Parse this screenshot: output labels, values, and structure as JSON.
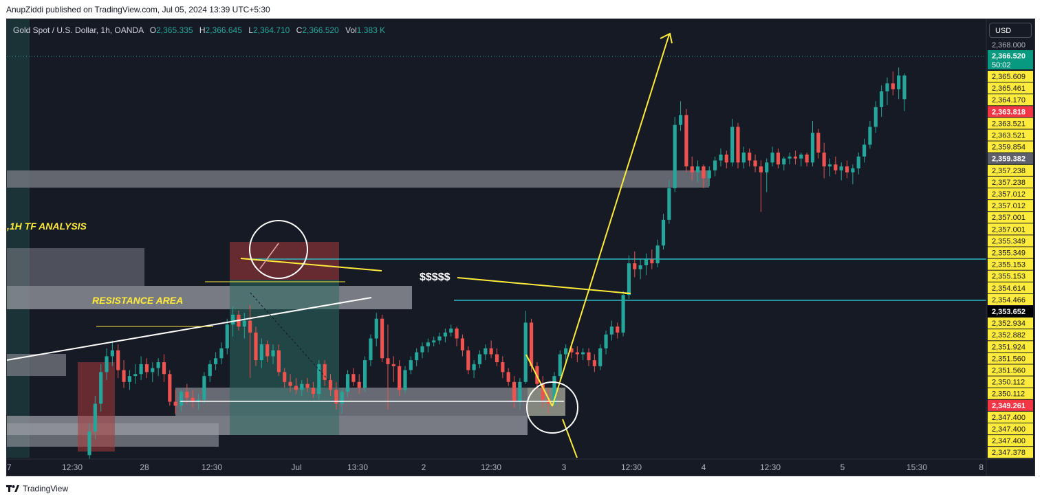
{
  "publisher_line": "AnupZiddi published on TradingView.com, Jul 05, 2024 13:39 UTC+5:30",
  "symbol": {
    "name": "Gold Spot / U.S. Dollar, 1h, OANDA",
    "o_label": "O",
    "o_value": "2,365.335",
    "h_label": "H",
    "h_value": "2,366.645",
    "l_label": "L",
    "l_value": "2,364.710",
    "c_label": "C",
    "c_value": "2,366.520",
    "vol_label": "Vol",
    "vol_value": "1.383 K"
  },
  "currency_button": "USD",
  "footer_brand": "TradingView",
  "colors": {
    "background": "#161a25",
    "bull": "#26a69a",
    "bear": "#ef5350",
    "yellow": "#ffeb3b",
    "cyan": "#2fb7c6",
    "zone_gray": "#7d8088",
    "label_yellow": "#ffeb3b",
    "label_red": "#f23645",
    "label_teal": "#089981"
  },
  "annotations": {
    "analysis_title": ",1H TF ANALYSIS",
    "resistance_label": "RESISTANCE AREA",
    "dollar_label": "$$$$$"
  },
  "chart_data": {
    "type": "candlestick",
    "title": "",
    "xlabel": "",
    "ylabel": "",
    "ylim": [
      2347.1,
      2368.3
    ],
    "last_price": "2,366.520",
    "countdown": "50:02",
    "x_ticks": [
      "7",
      "12:30",
      "28",
      "12:30",
      "Jul",
      "13:30",
      "2",
      "12:30",
      "3",
      "12:30",
      "4",
      "12:30",
      "5",
      "15:30",
      "8"
    ],
    "y_top_tick": "2,368.000",
    "price_labels": [
      {
        "text": "2,365.609",
        "kind": "yellow"
      },
      {
        "text": "2,365.461",
        "kind": "yellow"
      },
      {
        "text": "2,364.170",
        "kind": "yellow"
      },
      {
        "text": "2,363.818",
        "kind": "red"
      },
      {
        "text": "2,363.521",
        "kind": "yellow"
      },
      {
        "text": "2,363.521",
        "kind": "yellow"
      },
      {
        "text": "2,359.854",
        "kind": "yellow"
      },
      {
        "text": "2,359.382",
        "kind": "gray"
      },
      {
        "text": "2,357.238",
        "kind": "yellow"
      },
      {
        "text": "2,357.238",
        "kind": "yellow"
      },
      {
        "text": "2,357.012",
        "kind": "yellow"
      },
      {
        "text": "2,357.012",
        "kind": "yellow"
      },
      {
        "text": "2,357.001",
        "kind": "yellow"
      },
      {
        "text": "2,357.001",
        "kind": "yellow"
      },
      {
        "text": "2,355.349",
        "kind": "yellow"
      },
      {
        "text": "2,355.349",
        "kind": "yellow"
      },
      {
        "text": "2,355.153",
        "kind": "yellow"
      },
      {
        "text": "2,355.153",
        "kind": "yellow"
      },
      {
        "text": "2,354.614",
        "kind": "yellow"
      },
      {
        "text": "2,354.466",
        "kind": "yellow"
      },
      {
        "text": "2,353.652",
        "kind": "black"
      },
      {
        "text": "2,352.934",
        "kind": "yellow"
      },
      {
        "text": "2,352.882",
        "kind": "yellow"
      },
      {
        "text": "2,351.924",
        "kind": "yellow"
      },
      {
        "text": "2,351.560",
        "kind": "yellow"
      },
      {
        "text": "2,351.560",
        "kind": "yellow"
      },
      {
        "text": "2,350.112",
        "kind": "yellow"
      },
      {
        "text": "2,350.112",
        "kind": "yellow"
      },
      {
        "text": "2,349.261",
        "kind": "red"
      },
      {
        "text": "2,347.400",
        "kind": "yellow"
      },
      {
        "text": "2,347.400",
        "kind": "yellow"
      },
      {
        "text": "2,347.400",
        "kind": "yellow"
      },
      {
        "text": "2,347.378",
        "kind": "yellow"
      }
    ],
    "candles": [
      {
        "o": 2347.3,
        "h": 2348.9,
        "l": 2347.1,
        "c": 2348.5
      },
      {
        "o": 2348.5,
        "h": 2350.3,
        "l": 2348.1,
        "c": 2349.9
      },
      {
        "o": 2349.9,
        "h": 2351.9,
        "l": 2349.5,
        "c": 2351.5
      },
      {
        "o": 2351.5,
        "h": 2352.7,
        "l": 2351.1,
        "c": 2352.3
      },
      {
        "o": 2352.3,
        "h": 2353.1,
        "l": 2351.8,
        "c": 2352.6
      },
      {
        "o": 2352.6,
        "h": 2352.9,
        "l": 2351.2,
        "c": 2351.6
      },
      {
        "o": 2351.6,
        "h": 2352.1,
        "l": 2350.7,
        "c": 2351.0
      },
      {
        "o": 2351.0,
        "h": 2351.6,
        "l": 2350.6,
        "c": 2351.3
      },
      {
        "o": 2351.3,
        "h": 2351.9,
        "l": 2350.9,
        "c": 2351.4
      },
      {
        "o": 2351.4,
        "h": 2352.3,
        "l": 2351.1,
        "c": 2351.9
      },
      {
        "o": 2351.9,
        "h": 2352.2,
        "l": 2351.2,
        "c": 2351.5
      },
      {
        "o": 2351.5,
        "h": 2352.0,
        "l": 2351.0,
        "c": 2351.7
      },
      {
        "o": 2351.7,
        "h": 2352.2,
        "l": 2351.3,
        "c": 2352.0
      },
      {
        "o": 2352.0,
        "h": 2352.4,
        "l": 2351.0,
        "c": 2351.4
      },
      {
        "o": 2351.4,
        "h": 2351.6,
        "l": 2349.8,
        "c": 2350.0
      },
      {
        "o": 2350.0,
        "h": 2350.6,
        "l": 2349.4,
        "c": 2349.8
      },
      {
        "o": 2349.8,
        "h": 2350.6,
        "l": 2349.5,
        "c": 2350.5
      },
      {
        "o": 2350.5,
        "h": 2350.9,
        "l": 2349.9,
        "c": 2350.2
      },
      {
        "o": 2350.2,
        "h": 2350.6,
        "l": 2349.7,
        "c": 2350.0
      },
      {
        "o": 2350.0,
        "h": 2350.4,
        "l": 2349.6,
        "c": 2350.1
      },
      {
        "o": 2350.1,
        "h": 2351.5,
        "l": 2349.9,
        "c": 2351.3
      },
      {
        "o": 2351.3,
        "h": 2352.1,
        "l": 2351.0,
        "c": 2351.9
      },
      {
        "o": 2351.9,
        "h": 2352.5,
        "l": 2351.6,
        "c": 2352.2
      },
      {
        "o": 2352.2,
        "h": 2353.0,
        "l": 2351.9,
        "c": 2352.7
      },
      {
        "o": 2352.7,
        "h": 2354.2,
        "l": 2352.4,
        "c": 2353.9
      },
      {
        "o": 2353.9,
        "h": 2354.8,
        "l": 2353.3,
        "c": 2354.4
      },
      {
        "o": 2354.4,
        "h": 2354.6,
        "l": 2353.6,
        "c": 2353.8
      },
      {
        "o": 2353.8,
        "h": 2354.5,
        "l": 2353.2,
        "c": 2354.1
      },
      {
        "o": 2354.1,
        "h": 2354.9,
        "l": 2351.2,
        "c": 2353.5
      },
      {
        "o": 2353.5,
        "h": 2353.8,
        "l": 2351.8,
        "c": 2352.1
      },
      {
        "o": 2352.1,
        "h": 2353.2,
        "l": 2351.7,
        "c": 2352.9
      },
      {
        "o": 2352.9,
        "h": 2353.1,
        "l": 2352.0,
        "c": 2352.3
      },
      {
        "o": 2352.3,
        "h": 2352.9,
        "l": 2351.9,
        "c": 2352.6
      },
      {
        "o": 2352.6,
        "h": 2352.9,
        "l": 2351.3,
        "c": 2351.5
      },
      {
        "o": 2351.5,
        "h": 2351.7,
        "l": 2350.7,
        "c": 2351.0
      },
      {
        "o": 2351.0,
        "h": 2351.4,
        "l": 2350.5,
        "c": 2350.8
      },
      {
        "o": 2350.8,
        "h": 2351.2,
        "l": 2350.4,
        "c": 2350.6
      },
      {
        "o": 2350.6,
        "h": 2351.1,
        "l": 2350.3,
        "c": 2350.9
      },
      {
        "o": 2350.9,
        "h": 2351.2,
        "l": 2350.5,
        "c": 2350.7
      },
      {
        "o": 2350.7,
        "h": 2351.0,
        "l": 2350.2,
        "c": 2350.4
      },
      {
        "o": 2350.4,
        "h": 2352.1,
        "l": 2350.1,
        "c": 2351.9
      },
      {
        "o": 2351.9,
        "h": 2352.1,
        "l": 2350.8,
        "c": 2351.1
      },
      {
        "o": 2351.1,
        "h": 2351.4,
        "l": 2350.3,
        "c": 2350.6
      },
      {
        "o": 2350.6,
        "h": 2351.0,
        "l": 2349.6,
        "c": 2349.9
      },
      {
        "o": 2349.9,
        "h": 2350.7,
        "l": 2349.4,
        "c": 2350.5
      },
      {
        "o": 2350.5,
        "h": 2351.6,
        "l": 2350.2,
        "c": 2351.4
      },
      {
        "o": 2351.4,
        "h": 2351.7,
        "l": 2350.8,
        "c": 2351.0
      },
      {
        "o": 2351.0,
        "h": 2351.4,
        "l": 2350.4,
        "c": 2350.7
      },
      {
        "o": 2350.7,
        "h": 2352.3,
        "l": 2350.5,
        "c": 2352.1
      },
      {
        "o": 2352.1,
        "h": 2353.4,
        "l": 2351.8,
        "c": 2353.2
      },
      {
        "o": 2353.2,
        "h": 2354.5,
        "l": 2352.8,
        "c": 2354.2
      },
      {
        "o": 2354.2,
        "h": 2354.4,
        "l": 2352.0,
        "c": 2352.2
      },
      {
        "o": 2352.2,
        "h": 2353.9,
        "l": 2349.6,
        "c": 2351.9
      },
      {
        "o": 2351.9,
        "h": 2352.3,
        "l": 2351.0,
        "c": 2351.8
      },
      {
        "o": 2351.8,
        "h": 2352.1,
        "l": 2350.3,
        "c": 2350.6
      },
      {
        "o": 2350.6,
        "h": 2351.8,
        "l": 2350.4,
        "c": 2351.6
      },
      {
        "o": 2351.6,
        "h": 2352.3,
        "l": 2351.4,
        "c": 2352.1
      },
      {
        "o": 2352.1,
        "h": 2352.7,
        "l": 2351.8,
        "c": 2352.5
      },
      {
        "o": 2352.5,
        "h": 2353.0,
        "l": 2352.2,
        "c": 2352.8
      },
      {
        "o": 2352.8,
        "h": 2353.2,
        "l": 2352.5,
        "c": 2353.0
      },
      {
        "o": 2353.0,
        "h": 2353.3,
        "l": 2352.8,
        "c": 2353.1
      },
      {
        "o": 2353.1,
        "h": 2353.5,
        "l": 2352.9,
        "c": 2353.3
      },
      {
        "o": 2353.3,
        "h": 2353.7,
        "l": 2353.0,
        "c": 2353.5
      },
      {
        "o": 2353.5,
        "h": 2353.9,
        "l": 2353.3,
        "c": 2353.7
      },
      {
        "o": 2353.7,
        "h": 2353.8,
        "l": 2352.8,
        "c": 2353.2
      },
      {
        "o": 2353.2,
        "h": 2353.4,
        "l": 2352.3,
        "c": 2352.6
      },
      {
        "o": 2352.6,
        "h": 2352.8,
        "l": 2351.4,
        "c": 2351.6
      },
      {
        "o": 2351.6,
        "h": 2352.1,
        "l": 2351.2,
        "c": 2351.9
      },
      {
        "o": 2351.9,
        "h": 2352.6,
        "l": 2351.7,
        "c": 2352.4
      },
      {
        "o": 2352.4,
        "h": 2352.9,
        "l": 2352.1,
        "c": 2352.7
      },
      {
        "o": 2352.7,
        "h": 2353.1,
        "l": 2352.2,
        "c": 2352.4
      },
      {
        "o": 2352.4,
        "h": 2352.7,
        "l": 2351.8,
        "c": 2352.0
      },
      {
        "o": 2352.0,
        "h": 2352.3,
        "l": 2351.2,
        "c": 2351.5
      },
      {
        "o": 2351.5,
        "h": 2351.7,
        "l": 2350.8,
        "c": 2351.0
      },
      {
        "o": 2351.0,
        "h": 2351.3,
        "l": 2349.7,
        "c": 2350.0
      },
      {
        "o": 2350.0,
        "h": 2351.2,
        "l": 2349.6,
        "c": 2351.0
      },
      {
        "o": 2351.0,
        "h": 2354.6,
        "l": 2350.9,
        "c": 2354.0
      },
      {
        "o": 2354.0,
        "h": 2354.2,
        "l": 2351.5,
        "c": 2351.8
      },
      {
        "o": 2351.8,
        "h": 2352.0,
        "l": 2350.6,
        "c": 2350.9
      },
      {
        "o": 2350.9,
        "h": 2351.3,
        "l": 2349.7,
        "c": 2350.1
      },
      {
        "o": 2350.1,
        "h": 2350.7,
        "l": 2349.4,
        "c": 2349.9
      },
      {
        "o": 2349.9,
        "h": 2351.5,
        "l": 2349.8,
        "c": 2351.3
      },
      {
        "o": 2351.3,
        "h": 2352.6,
        "l": 2351.1,
        "c": 2352.4
      },
      {
        "o": 2352.4,
        "h": 2352.9,
        "l": 2352.0,
        "c": 2352.7
      },
      {
        "o": 2352.7,
        "h": 2353.0,
        "l": 2352.2,
        "c": 2352.5
      },
      {
        "o": 2352.5,
        "h": 2352.8,
        "l": 2352.0,
        "c": 2352.4
      },
      {
        "o": 2352.4,
        "h": 2352.7,
        "l": 2352.1,
        "c": 2352.5
      },
      {
        "o": 2352.5,
        "h": 2352.7,
        "l": 2351.8,
        "c": 2352.1
      },
      {
        "o": 2352.1,
        "h": 2352.4,
        "l": 2351.5,
        "c": 2351.8
      },
      {
        "o": 2351.8,
        "h": 2352.9,
        "l": 2351.6,
        "c": 2352.7
      },
      {
        "o": 2352.7,
        "h": 2353.6,
        "l": 2352.4,
        "c": 2353.4
      },
      {
        "o": 2353.4,
        "h": 2354.1,
        "l": 2353.1,
        "c": 2353.8
      },
      {
        "o": 2353.8,
        "h": 2354.0,
        "l": 2353.2,
        "c": 2353.5
      },
      {
        "o": 2353.5,
        "h": 2355.6,
        "l": 2353.3,
        "c": 2355.4
      },
      {
        "o": 2355.4,
        "h": 2357.4,
        "l": 2355.2,
        "c": 2357.0
      },
      {
        "o": 2357.0,
        "h": 2357.6,
        "l": 2356.3,
        "c": 2356.7
      },
      {
        "o": 2356.7,
        "h": 2357.2,
        "l": 2356.2,
        "c": 2356.9
      },
      {
        "o": 2356.9,
        "h": 2357.5,
        "l": 2356.4,
        "c": 2357.2
      },
      {
        "o": 2357.2,
        "h": 2357.7,
        "l": 2356.7,
        "c": 2357.0
      },
      {
        "o": 2357.0,
        "h": 2358.2,
        "l": 2356.8,
        "c": 2357.9
      },
      {
        "o": 2357.9,
        "h": 2359.5,
        "l": 2357.7,
        "c": 2359.2
      },
      {
        "o": 2359.2,
        "h": 2361.2,
        "l": 2359.0,
        "c": 2360.8
      },
      {
        "o": 2360.8,
        "h": 2364.4,
        "l": 2360.6,
        "c": 2364.0
      },
      {
        "o": 2364.0,
        "h": 2365.2,
        "l": 2363.7,
        "c": 2364.5
      },
      {
        "o": 2364.5,
        "h": 2364.8,
        "l": 2361.6,
        "c": 2361.9
      },
      {
        "o": 2361.9,
        "h": 2362.4,
        "l": 2361.2,
        "c": 2361.6
      },
      {
        "o": 2361.6,
        "h": 2362.2,
        "l": 2361.1,
        "c": 2361.9
      },
      {
        "o": 2361.9,
        "h": 2362.0,
        "l": 2360.8,
        "c": 2361.3
      },
      {
        "o": 2361.3,
        "h": 2361.9,
        "l": 2360.9,
        "c": 2361.7
      },
      {
        "o": 2361.7,
        "h": 2362.4,
        "l": 2361.4,
        "c": 2362.2
      },
      {
        "o": 2362.2,
        "h": 2362.8,
        "l": 2361.9,
        "c": 2362.5
      },
      {
        "o": 2362.5,
        "h": 2362.7,
        "l": 2361.8,
        "c": 2362.1
      },
      {
        "o": 2362.1,
        "h": 2364.3,
        "l": 2361.9,
        "c": 2363.9
      },
      {
        "o": 2363.9,
        "h": 2364.1,
        "l": 2361.8,
        "c": 2362.1
      },
      {
        "o": 2362.1,
        "h": 2362.9,
        "l": 2361.8,
        "c": 2362.6
      },
      {
        "o": 2362.6,
        "h": 2362.8,
        "l": 2361.9,
        "c": 2362.2
      },
      {
        "o": 2362.2,
        "h": 2362.5,
        "l": 2361.6,
        "c": 2361.9
      },
      {
        "o": 2361.9,
        "h": 2362.2,
        "l": 2359.6,
        "c": 2361.6
      },
      {
        "o": 2361.6,
        "h": 2362.3,
        "l": 2360.6,
        "c": 2362.1
      },
      {
        "o": 2362.1,
        "h": 2362.9,
        "l": 2361.9,
        "c": 2362.6
      },
      {
        "o": 2362.6,
        "h": 2362.8,
        "l": 2361.8,
        "c": 2362.0
      },
      {
        "o": 2362.0,
        "h": 2362.4,
        "l": 2361.7,
        "c": 2362.3
      },
      {
        "o": 2362.3,
        "h": 2362.6,
        "l": 2362.0,
        "c": 2362.4
      },
      {
        "o": 2362.4,
        "h": 2362.7,
        "l": 2362.0,
        "c": 2362.3
      },
      {
        "o": 2362.3,
        "h": 2362.6,
        "l": 2361.9,
        "c": 2362.5
      },
      {
        "o": 2362.5,
        "h": 2362.6,
        "l": 2361.9,
        "c": 2362.1
      },
      {
        "o": 2362.1,
        "h": 2364.2,
        "l": 2361.9,
        "c": 2363.6
      },
      {
        "o": 2363.6,
        "h": 2363.8,
        "l": 2362.3,
        "c": 2362.6
      },
      {
        "o": 2362.6,
        "h": 2363.1,
        "l": 2361.3,
        "c": 2361.9
      },
      {
        "o": 2361.9,
        "h": 2362.3,
        "l": 2361.4,
        "c": 2362.0
      },
      {
        "o": 2362.0,
        "h": 2362.4,
        "l": 2361.5,
        "c": 2361.7
      },
      {
        "o": 2361.7,
        "h": 2362.1,
        "l": 2361.2,
        "c": 2361.9
      },
      {
        "o": 2361.9,
        "h": 2362.2,
        "l": 2361.3,
        "c": 2361.6
      },
      {
        "o": 2361.6,
        "h": 2362.0,
        "l": 2361.0,
        "c": 2361.8
      },
      {
        "o": 2361.8,
        "h": 2362.6,
        "l": 2361.5,
        "c": 2362.4
      },
      {
        "o": 2362.4,
        "h": 2363.3,
        "l": 2362.1,
        "c": 2363.0
      },
      {
        "o": 2363.0,
        "h": 2364.2,
        "l": 2362.8,
        "c": 2363.9
      },
      {
        "o": 2363.9,
        "h": 2365.2,
        "l": 2363.6,
        "c": 2364.9
      },
      {
        "o": 2364.9,
        "h": 2366.0,
        "l": 2364.4,
        "c": 2365.7
      },
      {
        "o": 2365.7,
        "h": 2366.4,
        "l": 2365.0,
        "c": 2366.1
      },
      {
        "o": 2366.1,
        "h": 2366.7,
        "l": 2365.5,
        "c": 2365.8
      },
      {
        "o": 2365.8,
        "h": 2366.9,
        "l": 2365.3,
        "c": 2366.5
      },
      {
        "o": 2365.3,
        "h": 2366.6,
        "l": 2364.7,
        "c": 2366.5
      }
    ]
  }
}
